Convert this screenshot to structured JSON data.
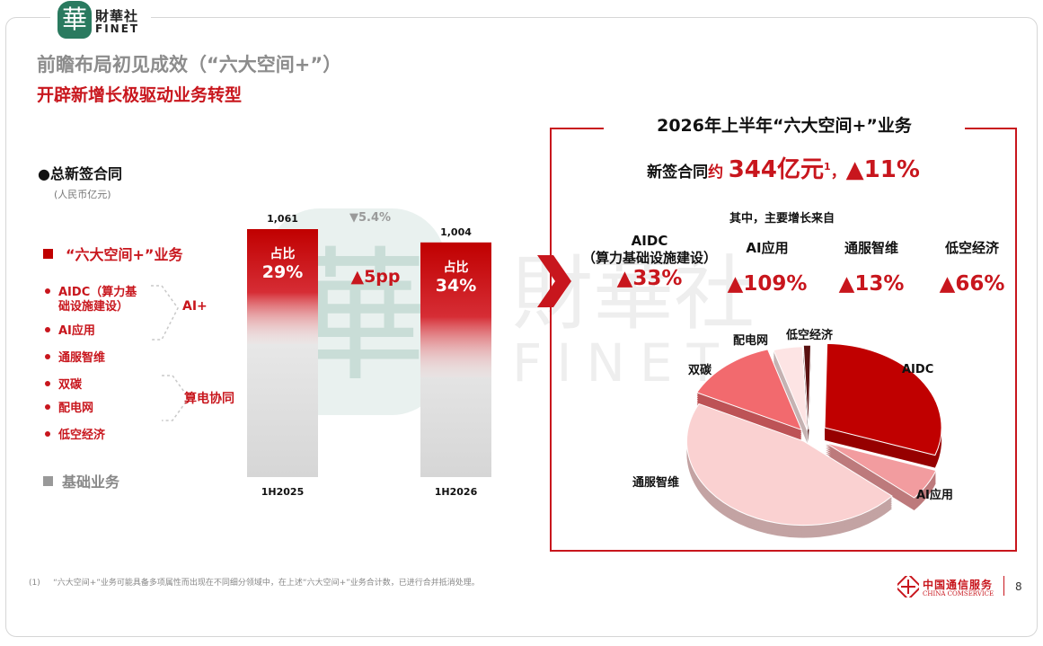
{
  "brand": {
    "seal_char": "華",
    "name_cn": "財華社",
    "name_en": "FINET"
  },
  "header": {
    "title_line1": "前瞻布局初见成效（“六大空间+”）",
    "title_line2": "开辟新增长极驱动业务转型"
  },
  "left": {
    "section_title": "总新签合同",
    "unit": "(人民币亿元)",
    "legend_six_space": "“六大空间+”业务",
    "legend_basic": "基础业务",
    "list": [
      {
        "label_l1": "AIDC（算力基",
        "label_l2": "础设施建设）"
      },
      {
        "label_l1": "AI应用"
      },
      {
        "label_l1": "通服智维"
      },
      {
        "label_l1": "双碳"
      },
      {
        "label_l1": "配电网"
      },
      {
        "label_l1": "低空经济"
      }
    ],
    "group_ai": "AI+",
    "group_power": "算电协同"
  },
  "chart_data": [
    {
      "type": "bar",
      "title": "",
      "categories": [
        "1H2025",
        "1H2026"
      ],
      "series": [
        {
          "name": "“六大空间+”业务",
          "share_labels": [
            "占比",
            "占比"
          ],
          "share_values": [
            "29%",
            "34%"
          ],
          "values": [
            29,
            34
          ]
        },
        {
          "name": "基础业务",
          "values": [
            71,
            66
          ]
        }
      ],
      "totals": [
        1061,
        1004
      ],
      "total_labels": [
        "1,061",
        "1,004"
      ],
      "total_change": "▼5.4%",
      "share_change": "▲5pp",
      "ylim": [
        0,
        1061
      ]
    },
    {
      "type": "pie",
      "title": "2026年上半年“六大空间+”业务",
      "slices": [
        {
          "label": "AIDC",
          "value": 30,
          "color": "#c00000"
        },
        {
          "label": "AI应用",
          "value": 6,
          "color": "#f29c9f"
        },
        {
          "label": "通服智维",
          "value": 46,
          "color": "#fad1d1"
        },
        {
          "label": "双碳",
          "value": 13,
          "color": "#f26a6e"
        },
        {
          "label": "配电网",
          "value": 4,
          "color": "#fde4e4"
        },
        {
          "label": "低空经济",
          "value": 1,
          "color": "#5a1111"
        }
      ]
    }
  ],
  "right": {
    "title": "2026年上半年“六大空间+”业务",
    "sign_label": "新签合同",
    "sign_approx": "约",
    "sign_value": "344亿元",
    "sign_note": "1",
    "sign_sep": "，",
    "sign_growth": "▲11%",
    "among": "其中，主要增长来自",
    "growth": [
      {
        "name_l1": "AIDC",
        "name_l2": "（算力基础设施建设）",
        "pct": "▲33%"
      },
      {
        "name_l1": "AI应用",
        "pct": "▲109%"
      },
      {
        "name_l1": "通服智维",
        "pct": "▲13%"
      },
      {
        "name_l1": "低空经济",
        "pct": "▲66%"
      }
    ]
  },
  "footer": {
    "note_no": "(1)",
    "note": "“六大空间+”业务可能具备多项属性而出现在不同细分领域中，在上述“六大空间+”业务合计数，已进行合并抵消处理。",
    "company_cn": "中国通信服务",
    "company_en": "CHINA COMSERVICE",
    "page": "8"
  },
  "colors": {
    "brand_red": "#c8161d",
    "dark_red": "#c00000",
    "gray": "#8c8c8c",
    "seal_green": "#2a7a5f"
  }
}
